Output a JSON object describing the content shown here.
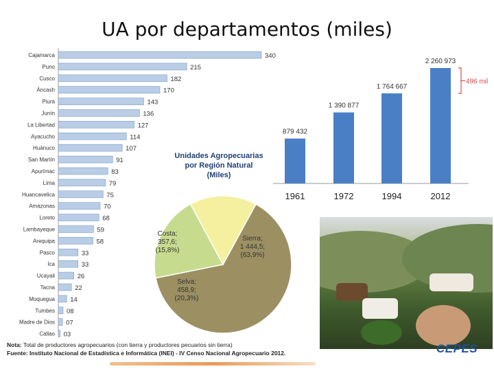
{
  "title": "UA por departamentos (miles)",
  "chart_data": [
    {
      "type": "bar",
      "orientation": "horizontal",
      "categories": [
        "Cajamarca",
        "Puno",
        "Cusco",
        "Áncash",
        "Piura",
        "Junín",
        "La Libertad",
        "Ayacucho",
        "Huánuco",
        "San Martín",
        "Apurímac",
        "Lima",
        "Huancavelica",
        "Amazonas",
        "Loreto",
        "Lambayeque",
        "Arequipa",
        "Pasco",
        "Ica",
        "Ucayali",
        "Tacna",
        "Moquegua",
        "Tumbes",
        "Madre de Dios",
        "Callao"
      ],
      "values": [
        340,
        215,
        182,
        170,
        143,
        136,
        127,
        114,
        107,
        91,
        83,
        79,
        75,
        70,
        68,
        59,
        58,
        33,
        33,
        26,
        22,
        14,
        8,
        7,
        3
      ],
      "value_labels": [
        "340",
        "215",
        "182",
        "170",
        "143",
        "136",
        "127",
        "114",
        "107",
        "91",
        "83",
        "79",
        "75",
        "70",
        "68",
        "59",
        "58",
        "33",
        "33",
        "26",
        "22",
        "14",
        "08",
        "07",
        "03"
      ],
      "xlim": [
        0,
        340
      ],
      "bar_color": "#b9cde6",
      "bar_edge": "#7f9cc4"
    },
    {
      "type": "bar",
      "categories": [
        "1961",
        "1972",
        "1994",
        "2012"
      ],
      "values": [
        879432,
        1390877,
        1764667,
        2260973
      ],
      "value_labels": [
        "879 432",
        "1 390 877",
        "1 764 667",
        "2 260 973"
      ],
      "ylim": [
        0,
        2260973
      ],
      "bar_color": "#4a7fc6",
      "annotation": "496 mil",
      "annotation_color": "#d94a4a"
    },
    {
      "type": "pie",
      "title": "Unidades Agropecuarias por Región Natural (Miles)",
      "slices": [
        {
          "name": "Sierra",
          "value": 1444.5,
          "percent": 63.9,
          "lines": [
            "Sierra;",
            "1 444,5;",
            "(63,9%)"
          ],
          "color": "#9c9063"
        },
        {
          "name": "Selva",
          "value": 458.9,
          "percent": 20.3,
          "lines": [
            "Selva;",
            "458,9;",
            "(20,3%)"
          ],
          "color": "#c6db8e"
        },
        {
          "name": "Costa",
          "value": 357.6,
          "percent": 15.8,
          "lines": [
            "Costa;",
            "357,6;",
            "(15,8%)"
          ],
          "color": "#f4f0a0"
        }
      ]
    }
  ],
  "notes": {
    "nota_label": "Nota:",
    "nota_text": " Total de productores agropecuarios (con tierra y productores pecuarios sin tierra)",
    "fuente_label": "Fuente: Instituto Nacional de Estadística e Informática (INEI) - IV Censo Nacional Agropecuario 2012."
  },
  "logo": "CEPES"
}
